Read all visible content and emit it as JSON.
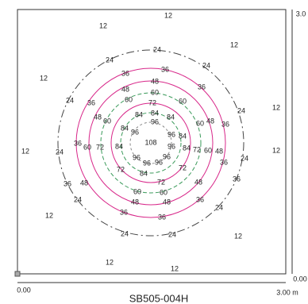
{
  "title": "SB505-004H",
  "axis": {
    "x_start": "0.00",
    "x_end": "3.00 m",
    "y_start": "0.00",
    "y_end": "3.0"
  },
  "contour_labels": [
    "12",
    "12",
    "12",
    "24",
    "24",
    "36",
    "24",
    "12",
    "36",
    "48",
    "24",
    "36",
    "48",
    "60",
    "36",
    "60",
    "72",
    "60",
    "84",
    "84",
    "48",
    "60",
    "96",
    "84",
    "60",
    "48",
    "36",
    "24",
    "12",
    "84",
    "96",
    "108",
    "96",
    "84",
    "36",
    "12",
    "24",
    "60",
    "72",
    "84",
    "96",
    "84",
    "72",
    "60",
    "48",
    "24",
    "12",
    "96",
    "96",
    "96",
    "96",
    "36",
    "72",
    "72",
    "84",
    "36",
    "48",
    "72",
    "48",
    "36",
    "60",
    "60",
    "24",
    "48",
    "48",
    "36",
    "12",
    "36",
    "36",
    "24",
    "24",
    "24",
    "12",
    "12",
    "12"
  ]
}
